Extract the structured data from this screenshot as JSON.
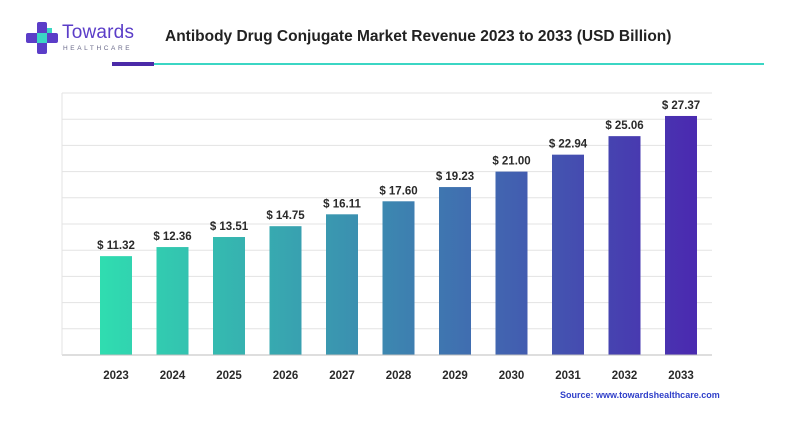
{
  "logo": {
    "name": "Towards",
    "tagline": "HEALTHCARE"
  },
  "title": "Antibody Drug Conjugate Market Revenue 2023 to 2033 (USD Billion)",
  "source": "Source: www.towardshealthcare.com",
  "colors": {
    "bar_start": "#2fe0b0",
    "bar_end": "#4a2bb0",
    "accent_teal": "#3bd6c4",
    "accent_purple": "#4b2aa8",
    "source_text": "#2f3fc9"
  },
  "chart_data": {
    "type": "bar",
    "title": "Antibody Drug Conjugate Market Revenue 2023 to 2033 (USD Billion)",
    "categories": [
      "2023",
      "2024",
      "2025",
      "2026",
      "2027",
      "2028",
      "2029",
      "2030",
      "2031",
      "2032",
      "2033"
    ],
    "values": [
      11.32,
      12.36,
      13.51,
      14.75,
      16.11,
      17.6,
      19.23,
      21.0,
      22.94,
      25.06,
      27.37
    ],
    "value_labels": [
      "$ 11.32",
      "$ 12.36",
      "$ 13.51",
      "$ 14.75",
      "$ 16.11",
      "$ 17.60",
      "$ 19.23",
      "$ 21.00",
      "$ 22.94",
      "$ 25.06",
      "$ 27.37"
    ],
    "xlabel": "",
    "ylabel": "",
    "ylim": [
      0,
      30
    ],
    "grid": true,
    "legend": "none"
  }
}
